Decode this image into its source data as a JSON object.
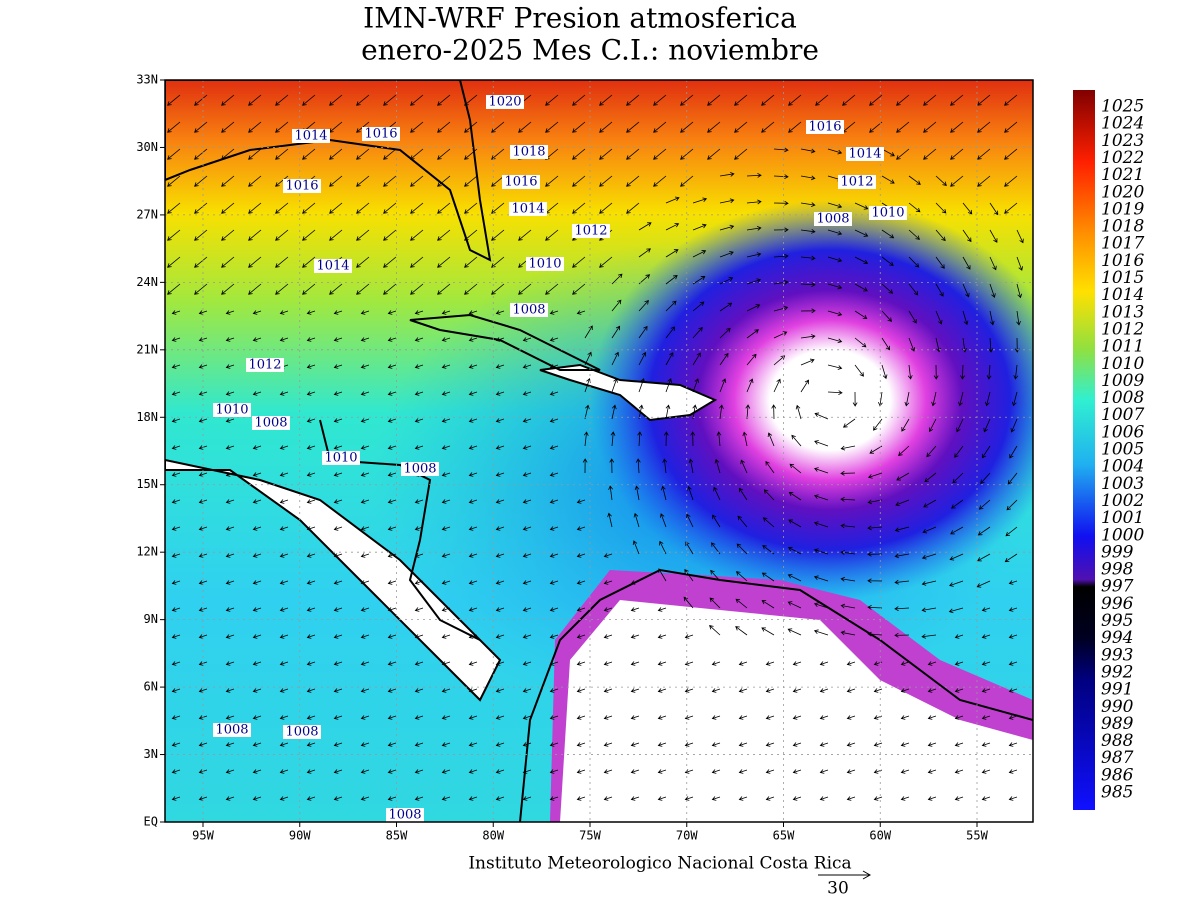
{
  "header": {
    "title_lines": [
      "IMN-WRF  Presion atmosferica",
      "enero-2025 Mes C.I.: noviembre"
    ]
  },
  "map": {
    "lat_labels": [
      "33N",
      "30N",
      "27N",
      "24N",
      "21N",
      "18N",
      "15N",
      "12N",
      "9N",
      "6N",
      "3N",
      "EQ"
    ],
    "lon_labels": [
      "95W",
      "90W",
      "85W",
      "80W",
      "75W",
      "70W",
      "65W",
      "60W",
      "55W"
    ],
    "contour_labels": [
      "1020",
      "1014",
      "1016",
      "1018",
      "1016",
      "1014",
      "1016",
      "1016",
      "1012",
      "1014",
      "1008",
      "1010",
      "1012",
      "1014",
      "1010",
      "1008",
      "1012",
      "1010",
      "1008",
      "1010",
      "1008",
      "1008",
      "1008",
      "1008"
    ]
  },
  "colorbar": {
    "labels": [
      "1025",
      "1024",
      "1023",
      "1022",
      "1021",
      "1020",
      "1019",
      "1018",
      "1017",
      "1016",
      "1015",
      "1014",
      "1013",
      "1012",
      "1011",
      "1010",
      "1009",
      "1008",
      "1007",
      "1006",
      "1005",
      "1004",
      "1003",
      "1002",
      "1001",
      "1000",
      "999",
      "998",
      "997",
      "996",
      "995",
      "994",
      "993",
      "992",
      "991",
      "990",
      "989",
      "988",
      "987",
      "986",
      "985"
    ]
  },
  "footer": "Instituto Meteorologico Nacional Costa Rica",
  "vector_reference": "30"
}
